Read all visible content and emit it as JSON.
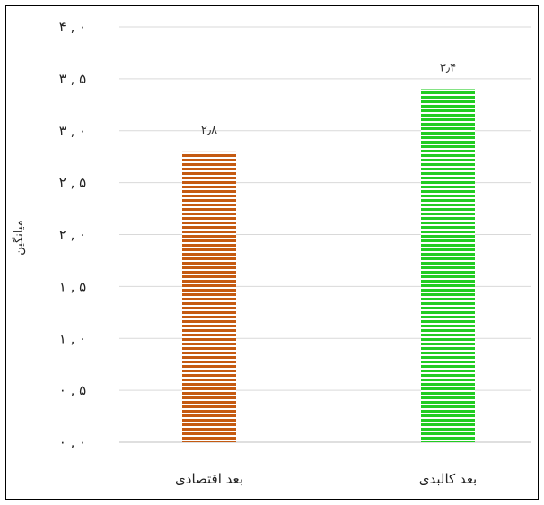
{
  "chart_data": {
    "type": "bar",
    "categories": [
      "بعد اقتصادی",
      "بعد کالبدی"
    ],
    "values": [
      2.8,
      3.4
    ],
    "value_labels": [
      "۲٫۸",
      "۳٫۴"
    ],
    "ylabel": "میانگین",
    "ylim": [
      0,
      4
    ],
    "yticks": [
      0,
      0.5,
      1,
      1.5,
      2,
      2.5,
      3,
      3.5,
      4
    ],
    "ytick_labels": [
      "۰ , ۰",
      "۰ , ۵",
      "۱ , ۰",
      "۱ , ۵",
      "۲ , ۰",
      "۲ , ۵",
      "۳ , ۰",
      "۳ , ۵",
      "۴ , ۰"
    ],
    "colors": [
      "#c55a11",
      "#22cc22"
    ],
    "fill_pattern": "horizontal-stripes",
    "grid": true,
    "legend": "none"
  }
}
